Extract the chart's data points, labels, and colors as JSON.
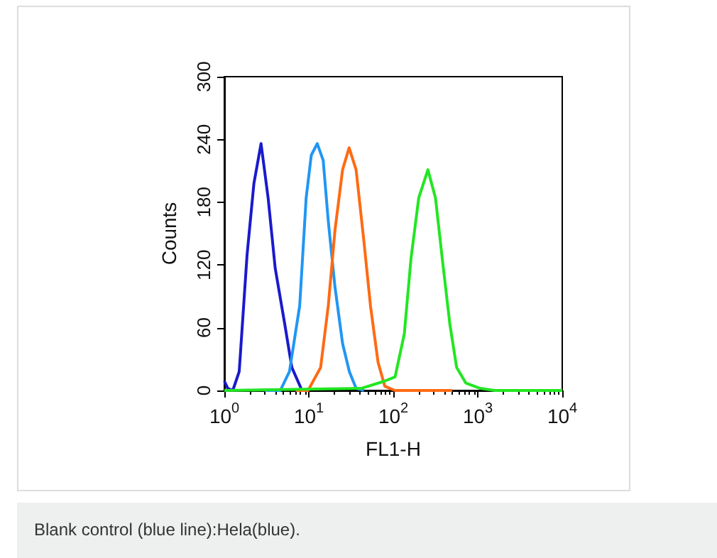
{
  "chart_data": {
    "type": "line",
    "xlabel": "FL1-H",
    "ylabel": "Counts",
    "log": "x",
    "xlim": [
      1,
      10000
    ],
    "xticks": [
      {
        "value": 1,
        "label": "10$^{0}$"
      },
      {
        "value": 10,
        "label": "10$^{1}$"
      },
      {
        "value": 100,
        "label": "10$^{2}$"
      },
      {
        "value": 1000,
        "label": "10$^{3}$"
      },
      {
        "value": 10000,
        "label": "10$^{4}$"
      }
    ],
    "ylim": [
      0,
      300
    ],
    "yticks": [
      0,
      60,
      120,
      180,
      240,
      300
    ],
    "grid": false,
    "marker": "none",
    "line_style": "solid",
    "series": [
      {
        "color": "#1a1acc",
        "x": [
          1,
          1.1,
          1.26,
          1.5,
          1.86,
          2.24,
          2.72,
          3.3,
          4,
          5.2,
          6.3,
          8.3,
          10
        ],
        "values": [
          9,
          2,
          0,
          18,
          130,
          198,
          236,
          184,
          117,
          63,
          22,
          0,
          0
        ]
      },
      {
        "color": "#2196f3",
        "x": [
          3,
          4.6,
          5.9,
          7.8,
          9.3,
          10.7,
          12.6,
          14.8,
          17,
          20.4,
          25.1,
          30.2,
          36.3,
          45
        ],
        "values": [
          0,
          0,
          18,
          81,
          184,
          225,
          236,
          220,
          162,
          99,
          45,
          18,
          2,
          0
        ]
      },
      {
        "color": "#ff6a13",
        "x": [
          7,
          9.8,
          13.8,
          17,
          20.4,
          25.1,
          30,
          36.3,
          44.7,
          53.7,
          66,
          79.4,
          105,
          500
        ],
        "values": [
          0,
          0,
          22,
          81,
          153,
          211,
          232,
          211,
          144,
          81,
          27,
          4,
          0,
          0
        ]
      },
      {
        "color": "#22e622",
        "x": [
          1,
          41.7,
          79.4,
          105,
          135,
          162,
          200,
          257,
          316,
          380,
          468,
          562,
          724,
          1070,
          1585,
          10000
        ],
        "values": [
          0,
          2,
          9,
          13,
          54,
          126,
          184,
          211,
          184,
          126,
          63,
          22,
          7,
          2,
          0,
          0
        ]
      }
    ],
    "annotations": [
      "Blank control (blue line):Hela(blue)."
    ]
  }
}
